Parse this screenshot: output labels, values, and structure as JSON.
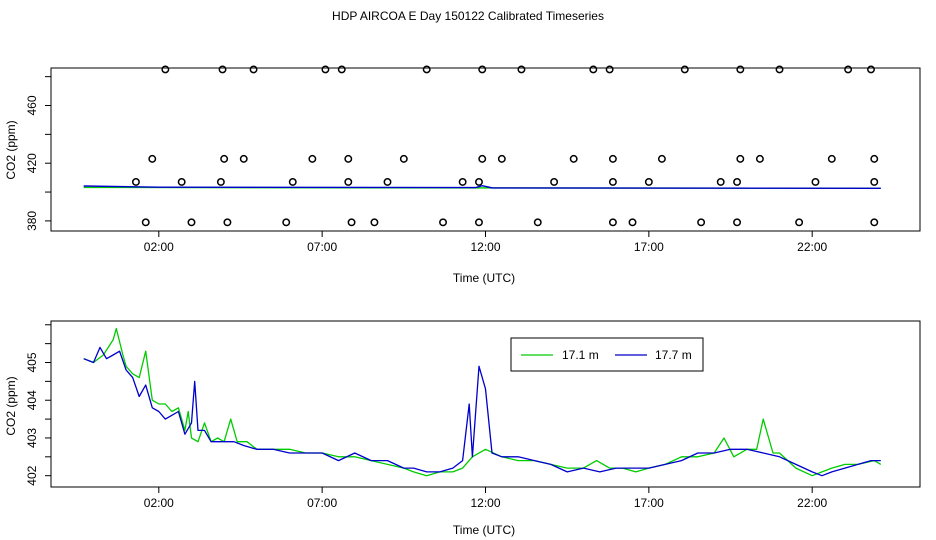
{
  "title": "HDP AIRCOA E  Day 150122  Calibrated Timeseries",
  "chart_data": [
    {
      "type": "scatter",
      "xlabel": "Time (UTC)",
      "ylabel": "CO2 (ppm)",
      "xlim": [
        -1.3,
        25.3
      ],
      "ylim": [
        373,
        486
      ],
      "xticks": [
        2,
        7,
        12,
        17,
        22
      ],
      "xtick_labels": [
        "02:00",
        "07:00",
        "12:00",
        "17:00",
        "22:00"
      ],
      "yticks": [
        380,
        420,
        460
      ],
      "ytick_labels": [
        "380",
        "420",
        "460"
      ],
      "grid": false,
      "points": [
        [
          1.6,
          379
        ],
        [
          3.0,
          379
        ],
        [
          4.1,
          379
        ],
        [
          5.9,
          379
        ],
        [
          7.9,
          379
        ],
        [
          8.6,
          379
        ],
        [
          10.7,
          379
        ],
        [
          11.8,
          379
        ],
        [
          13.6,
          379
        ],
        [
          15.9,
          379
        ],
        [
          16.5,
          379
        ],
        [
          18.6,
          379
        ],
        [
          19.7,
          379
        ],
        [
          21.6,
          379
        ],
        [
          23.9,
          379
        ],
        [
          2.2,
          485
        ],
        [
          3.95,
          485
        ],
        [
          4.9,
          485
        ],
        [
          7.1,
          485
        ],
        [
          7.6,
          485
        ],
        [
          10.2,
          485
        ],
        [
          11.9,
          485
        ],
        [
          13.1,
          485
        ],
        [
          15.3,
          485
        ],
        [
          15.8,
          485
        ],
        [
          18.1,
          485
        ],
        [
          19.8,
          485
        ],
        [
          21.0,
          485
        ],
        [
          23.1,
          485
        ],
        [
          23.8,
          485
        ],
        [
          1.8,
          423
        ],
        [
          4.0,
          423
        ],
        [
          4.6,
          423
        ],
        [
          6.7,
          423
        ],
        [
          7.8,
          423
        ],
        [
          9.5,
          423
        ],
        [
          11.9,
          423
        ],
        [
          12.5,
          423
        ],
        [
          14.7,
          423
        ],
        [
          15.9,
          423
        ],
        [
          17.4,
          423
        ],
        [
          19.8,
          423
        ],
        [
          20.4,
          423
        ],
        [
          22.6,
          423
        ],
        [
          23.9,
          423
        ],
        [
          1.3,
          407
        ],
        [
          2.7,
          407
        ],
        [
          3.9,
          407
        ],
        [
          6.1,
          407
        ],
        [
          7.8,
          407
        ],
        [
          9.0,
          407
        ],
        [
          11.3,
          407
        ],
        [
          11.8,
          407
        ],
        [
          14.1,
          407
        ],
        [
          15.9,
          407
        ],
        [
          17.0,
          407
        ],
        [
          19.2,
          407
        ],
        [
          19.7,
          407
        ],
        [
          22.1,
          407
        ],
        [
          23.9,
          407
        ]
      ],
      "series": [
        {
          "name": "17.1 m",
          "color": "#00cc00"
        },
        {
          "name": "17.7 m",
          "color": "#0000cc"
        }
      ],
      "line_level": 402.6
    },
    {
      "type": "line",
      "xlabel": "Time (UTC)",
      "ylabel": "CO2 (ppm)",
      "xlim": [
        -1.3,
        25.3
      ],
      "ylim": [
        401.7,
        406.1
      ],
      "xticks": [
        2,
        7,
        12,
        17,
        22
      ],
      "xtick_labels": [
        "02:00",
        "07:00",
        "12:00",
        "17:00",
        "22:00"
      ],
      "yticks": [
        402,
        403,
        404,
        405
      ],
      "ytick_labels": [
        "402",
        "403",
        "404",
        "405"
      ],
      "grid": false,
      "legend": "top-right",
      "series": [
        {
          "name": "17.1 m",
          "color": "#00cc00",
          "points": [
            [
              -0.3,
              405.1
            ],
            [
              0.0,
              405.0
            ],
            [
              0.3,
              405.2
            ],
            [
              0.6,
              405.6
            ],
            [
              0.7,
              405.9
            ],
            [
              0.9,
              405.2
            ],
            [
              1.0,
              404.9
            ],
            [
              1.2,
              404.7
            ],
            [
              1.4,
              404.6
            ],
            [
              1.6,
              405.3
            ],
            [
              1.8,
              404.0
            ],
            [
              2.0,
              403.9
            ],
            [
              2.2,
              403.9
            ],
            [
              2.4,
              403.7
            ],
            [
              2.6,
              403.8
            ],
            [
              2.8,
              403.2
            ],
            [
              2.9,
              403.7
            ],
            [
              3.0,
              403.0
            ],
            [
              3.2,
              402.9
            ],
            [
              3.4,
              403.4
            ],
            [
              3.6,
              402.9
            ],
            [
              3.8,
              403.0
            ],
            [
              4.0,
              402.9
            ],
            [
              4.2,
              403.5
            ],
            [
              4.4,
              402.9
            ],
            [
              4.7,
              402.9
            ],
            [
              5.0,
              402.7
            ],
            [
              5.5,
              402.7
            ],
            [
              6.0,
              402.7
            ],
            [
              6.5,
              402.6
            ],
            [
              7.0,
              402.6
            ],
            [
              7.5,
              402.5
            ],
            [
              8.0,
              402.5
            ],
            [
              8.5,
              402.4
            ],
            [
              9.0,
              402.3
            ],
            [
              9.5,
              402.2
            ],
            [
              9.8,
              402.1
            ],
            [
              10.2,
              402.0
            ],
            [
              10.6,
              402.1
            ],
            [
              11.0,
              402.1
            ],
            [
              11.3,
              402.2
            ],
            [
              11.6,
              402.5
            ],
            [
              12.0,
              402.7
            ],
            [
              12.5,
              402.5
            ],
            [
              13.0,
              402.4
            ],
            [
              13.5,
              402.4
            ],
            [
              14.0,
              402.3
            ],
            [
              14.5,
              402.2
            ],
            [
              15.0,
              402.2
            ],
            [
              15.4,
              402.4
            ],
            [
              15.8,
              402.2
            ],
            [
              16.2,
              402.2
            ],
            [
              16.6,
              402.1
            ],
            [
              17.0,
              402.2
            ],
            [
              17.5,
              402.3
            ],
            [
              18.0,
              402.5
            ],
            [
              18.5,
              402.5
            ],
            [
              19.0,
              402.6
            ],
            [
              19.3,
              403.0
            ],
            [
              19.6,
              402.5
            ],
            [
              20.0,
              402.7
            ],
            [
              20.3,
              402.7
            ],
            [
              20.5,
              403.5
            ],
            [
              20.8,
              402.6
            ],
            [
              21.0,
              402.6
            ],
            [
              21.5,
              402.2
            ],
            [
              22.0,
              402.0
            ],
            [
              22.3,
              402.1
            ],
            [
              22.6,
              402.2
            ],
            [
              23.0,
              402.3
            ],
            [
              23.4,
              402.3
            ],
            [
              23.9,
              402.4
            ],
            [
              24.1,
              402.3
            ]
          ]
        },
        {
          "name": "17.7 m",
          "color": "#0000cc",
          "points": [
            [
              -0.3,
              405.1
            ],
            [
              0.0,
              405.0
            ],
            [
              0.2,
              405.4
            ],
            [
              0.4,
              405.1
            ],
            [
              0.6,
              405.2
            ],
            [
              0.8,
              405.3
            ],
            [
              1.0,
              404.8
            ],
            [
              1.2,
              404.6
            ],
            [
              1.4,
              404.1
            ],
            [
              1.6,
              404.4
            ],
            [
              1.8,
              403.8
            ],
            [
              2.0,
              403.7
            ],
            [
              2.2,
              403.5
            ],
            [
              2.4,
              403.6
            ],
            [
              2.6,
              403.7
            ],
            [
              2.8,
              403.1
            ],
            [
              3.0,
              403.4
            ],
            [
              3.1,
              404.5
            ],
            [
              3.2,
              403.2
            ],
            [
              3.4,
              403.2
            ],
            [
              3.6,
              402.9
            ],
            [
              3.8,
              402.9
            ],
            [
              4.0,
              402.9
            ],
            [
              4.3,
              402.9
            ],
            [
              4.6,
              402.8
            ],
            [
              5.0,
              402.7
            ],
            [
              5.5,
              402.7
            ],
            [
              6.0,
              402.6
            ],
            [
              6.5,
              402.6
            ],
            [
              7.0,
              402.6
            ],
            [
              7.5,
              402.4
            ],
            [
              8.0,
              402.6
            ],
            [
              8.5,
              402.4
            ],
            [
              9.0,
              402.4
            ],
            [
              9.5,
              402.2
            ],
            [
              9.8,
              402.2
            ],
            [
              10.2,
              402.1
            ],
            [
              10.6,
              402.1
            ],
            [
              11.0,
              402.2
            ],
            [
              11.3,
              402.4
            ],
            [
              11.5,
              403.9
            ],
            [
              11.6,
              402.5
            ],
            [
              11.8,
              404.9
            ],
            [
              12.0,
              404.3
            ],
            [
              12.2,
              402.6
            ],
            [
              12.5,
              402.5
            ],
            [
              13.0,
              402.5
            ],
            [
              13.5,
              402.4
            ],
            [
              14.0,
              402.3
            ],
            [
              14.5,
              402.1
            ],
            [
              15.0,
              402.2
            ],
            [
              15.5,
              402.1
            ],
            [
              16.0,
              402.2
            ],
            [
              16.5,
              402.2
            ],
            [
              17.0,
              402.2
            ],
            [
              17.5,
              402.3
            ],
            [
              18.0,
              402.4
            ],
            [
              18.5,
              402.6
            ],
            [
              19.0,
              402.6
            ],
            [
              19.5,
              402.7
            ],
            [
              20.0,
              402.7
            ],
            [
              20.5,
              402.6
            ],
            [
              21.0,
              402.5
            ],
            [
              21.5,
              402.3
            ],
            [
              22.0,
              402.1
            ],
            [
              22.3,
              402.0
            ],
            [
              22.6,
              402.1
            ],
            [
              23.0,
              402.2
            ],
            [
              23.4,
              402.3
            ],
            [
              23.8,
              402.4
            ],
            [
              24.1,
              402.4
            ]
          ]
        }
      ]
    }
  ]
}
